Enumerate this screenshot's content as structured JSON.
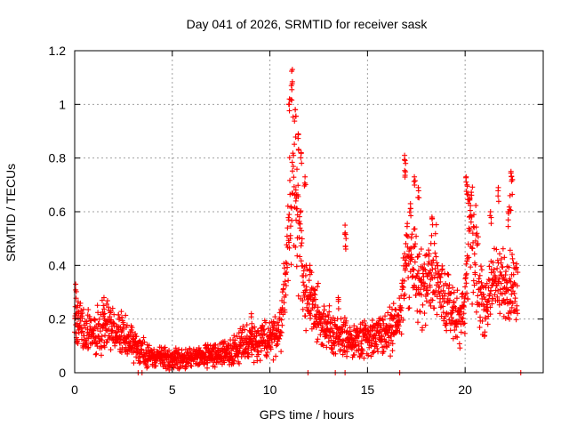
{
  "chart_data": {
    "type": "scatter",
    "title": "Day 041 of 2026, SRMTID for receiver sask",
    "xlabel": "GPS time / hours",
    "ylabel": "SRMTID / TECUs",
    "xlim": [
      0,
      24
    ],
    "ylim": [
      0,
      1.2
    ],
    "x_ticks": [
      0,
      5,
      10,
      15,
      20
    ],
    "x_tick_labels": [
      "0",
      "5",
      "10",
      "15",
      "20"
    ],
    "y_ticks": [
      0,
      0.2,
      0.4,
      0.6,
      0.8,
      1.0,
      1.2
    ],
    "y_tick_labels": [
      "0",
      "0.2",
      "0.4",
      "0.6",
      "0.8",
      "1",
      "1.2"
    ],
    "grid": true,
    "marker": "+",
    "series": [
      {
        "name": "SRMTID",
        "color": "#ff0000",
        "profile": [
          {
            "x": 0.0,
            "y": 0.2
          },
          {
            "x": 0.5,
            "y": 0.15
          },
          {
            "x": 1.0,
            "y": 0.14
          },
          {
            "x": 1.5,
            "y": 0.17
          },
          {
            "x": 2.0,
            "y": 0.17
          },
          {
            "x": 2.5,
            "y": 0.14
          },
          {
            "x": 3.0,
            "y": 0.11
          },
          {
            "x": 3.5,
            "y": 0.08
          },
          {
            "x": 4.0,
            "y": 0.06
          },
          {
            "x": 5.0,
            "y": 0.05
          },
          {
            "x": 6.0,
            "y": 0.06
          },
          {
            "x": 7.0,
            "y": 0.06
          },
          {
            "x": 8.0,
            "y": 0.09
          },
          {
            "x": 9.0,
            "y": 0.11
          },
          {
            "x": 10.0,
            "y": 0.12
          },
          {
            "x": 10.6,
            "y": 0.17
          },
          {
            "x": 10.9,
            "y": 0.45
          },
          {
            "x": 11.2,
            "y": 0.75
          },
          {
            "x": 11.5,
            "y": 0.55
          },
          {
            "x": 11.8,
            "y": 0.28
          },
          {
            "x": 12.5,
            "y": 0.22
          },
          {
            "x": 13.0,
            "y": 0.15
          },
          {
            "x": 14.0,
            "y": 0.12
          },
          {
            "x": 15.0,
            "y": 0.13
          },
          {
            "x": 16.0,
            "y": 0.14
          },
          {
            "x": 16.7,
            "y": 0.2
          },
          {
            "x": 17.0,
            "y": 0.45
          },
          {
            "x": 17.5,
            "y": 0.35
          },
          {
            "x": 18.0,
            "y": 0.32
          },
          {
            "x": 18.5,
            "y": 0.38
          },
          {
            "x": 19.0,
            "y": 0.27
          },
          {
            "x": 19.6,
            "y": 0.2
          },
          {
            "x": 20.0,
            "y": 0.25
          },
          {
            "x": 20.2,
            "y": 0.55
          },
          {
            "x": 20.6,
            "y": 0.4
          },
          {
            "x": 21.0,
            "y": 0.25
          },
          {
            "x": 21.5,
            "y": 0.35
          },
          {
            "x": 22.0,
            "y": 0.3
          },
          {
            "x": 22.5,
            "y": 0.33
          },
          {
            "x": 22.7,
            "y": 0.25
          }
        ],
        "spikes": [
          {
            "x": 0.05,
            "y": 0.33
          },
          {
            "x": 11.15,
            "y": 1.13
          },
          {
            "x": 11.1,
            "y": 1.07
          },
          {
            "x": 11.0,
            "y": 1.02
          },
          {
            "x": 11.3,
            "y": 0.98
          },
          {
            "x": 11.45,
            "y": 0.89
          },
          {
            "x": 11.6,
            "y": 0.82
          },
          {
            "x": 11.8,
            "y": 0.73
          },
          {
            "x": 11.35,
            "y": 0.65
          },
          {
            "x": 13.85,
            "y": 0.55
          },
          {
            "x": 13.9,
            "y": 0.5
          },
          {
            "x": 16.9,
            "y": 0.81
          },
          {
            "x": 16.95,
            "y": 0.78
          },
          {
            "x": 17.4,
            "y": 0.73
          },
          {
            "x": 17.6,
            "y": 0.69
          },
          {
            "x": 17.2,
            "y": 0.63
          },
          {
            "x": 18.3,
            "y": 0.58
          },
          {
            "x": 20.05,
            "y": 0.73
          },
          {
            "x": 20.1,
            "y": 0.7
          },
          {
            "x": 20.25,
            "y": 0.65
          },
          {
            "x": 21.7,
            "y": 0.69
          },
          {
            "x": 22.35,
            "y": 0.75
          },
          {
            "x": 22.4,
            "y": 0.72
          },
          {
            "x": 22.3,
            "y": 0.66
          },
          {
            "x": 21.3,
            "y": 0.6
          },
          {
            "x": 22.2,
            "y": 0.6
          },
          {
            "x": 12.05,
            "y": 0.4
          },
          {
            "x": 12.3,
            "y": 0.31
          },
          {
            "x": 13.5,
            "y": 0.28
          },
          {
            "x": 9.05,
            "y": 0.22
          },
          {
            "x": 1.5,
            "y": 0.28
          },
          {
            "x": 0.15,
            "y": 0.25
          }
        ],
        "zeros": [
          3.25,
          3.45,
          11.95,
          13.35,
          13.85,
          16.65,
          22.85
        ]
      }
    ]
  }
}
